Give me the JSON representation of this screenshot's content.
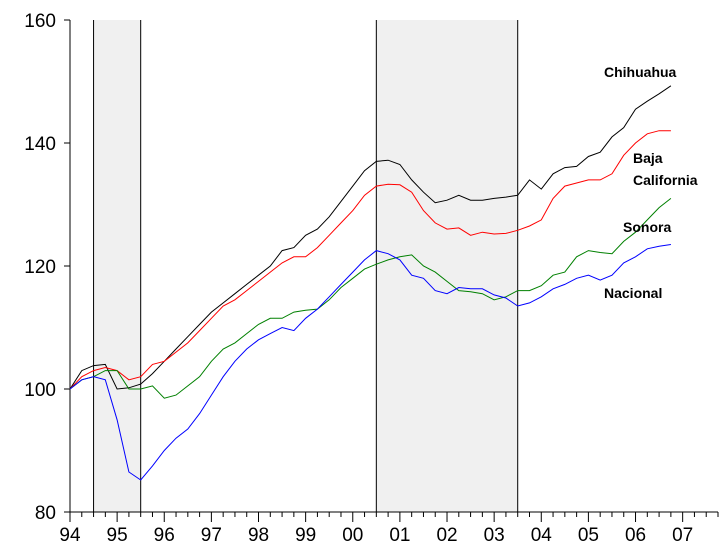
{
  "chart_data": {
    "type": "line",
    "x": [
      1994,
      1994.25,
      1994.5,
      1994.75,
      1995,
      1995.25,
      1995.5,
      1995.75,
      1996,
      1996.25,
      1996.5,
      1996.75,
      1997,
      1997.25,
      1997.5,
      1997.75,
      1998,
      1998.25,
      1998.5,
      1998.75,
      1999,
      1999.25,
      1999.5,
      1999.75,
      2000,
      2000.25,
      2000.5,
      2000.75,
      2001,
      2001.25,
      2001.5,
      2001.75,
      2002,
      2002.25,
      2002.5,
      2002.75,
      2003,
      2003.25,
      2003.5,
      2003.75,
      2004,
      2004.25,
      2004.5,
      2004.75,
      2005,
      2005.25,
      2005.5,
      2005.75,
      2006,
      2006.25,
      2006.5,
      2006.75
    ],
    "series": [
      {
        "name": "Chihuahua",
        "color": "#000000",
        "values": [
          100,
          103,
          103.8,
          104,
          100,
          100.2,
          100.8,
          102.5,
          104.5,
          106.5,
          108.5,
          110.5,
          112.5,
          114,
          115.5,
          117,
          118.5,
          120,
          122.5,
          123,
          125,
          126,
          128,
          130.5,
          133,
          135.5,
          137,
          137.2,
          136.5,
          134,
          132,
          130.3,
          130.7,
          131.5,
          130.7,
          130.7,
          131,
          131.2,
          131.5,
          134,
          132.5,
          135,
          136,
          136.2,
          137.8,
          138.5,
          141,
          142.5,
          145.5,
          146.8,
          148,
          149.3
        ]
      },
      {
        "name": "Baja California",
        "color": "#ff0000",
        "values": [
          100,
          102,
          103,
          103.5,
          103,
          101.5,
          102,
          104,
          104.5,
          106,
          107.5,
          109.5,
          111.5,
          113.5,
          114.5,
          116,
          117.5,
          119,
          120.5,
          121.5,
          121.5,
          123,
          125,
          127,
          129,
          131.5,
          133,
          133.3,
          133.2,
          132,
          129,
          127,
          126,
          126.2,
          125,
          125.5,
          125.2,
          125.3,
          125.8,
          126.5,
          127.5,
          131,
          133,
          133.5,
          134,
          134,
          135,
          138,
          140,
          141.5,
          142,
          142
        ]
      },
      {
        "name": "Sonora",
        "color": "#008000",
        "values": [
          100,
          101.5,
          102,
          103,
          103,
          100,
          100,
          100.5,
          98.5,
          99,
          100.5,
          102,
          104.5,
          106.5,
          107.5,
          109,
          110.5,
          111.5,
          111.5,
          112.5,
          112.8,
          113,
          114.5,
          116.5,
          118,
          119.5,
          120.3,
          121,
          121.5,
          121.8,
          120,
          119,
          117.5,
          116,
          115.8,
          115.5,
          114.5,
          115,
          116,
          116,
          116.8,
          118.5,
          119,
          121.5,
          122.5,
          122.2,
          122,
          124,
          125.5,
          127.5,
          129.5,
          131
        ]
      },
      {
        "name": "Nacional",
        "color": "#0000ff",
        "values": [
          100,
          101.5,
          102,
          101.5,
          95,
          86.5,
          85.2,
          87.5,
          90,
          92,
          93.5,
          96,
          99,
          102,
          104.5,
          106.5,
          108,
          109,
          110,
          109.5,
          111.5,
          113,
          115,
          117,
          119,
          121,
          122.5,
          122,
          121,
          118.5,
          118,
          116,
          115.5,
          116.5,
          116.3,
          116.3,
          115.3,
          114.8,
          113.5,
          114,
          115,
          116.3,
          117,
          118,
          118.5,
          117.7,
          118.5,
          120.5,
          121.5,
          122.8,
          123.2,
          123.5
        ]
      }
    ],
    "shaded": [
      [
        1994.5,
        1995.5
      ],
      [
        2000.5,
        2003.5
      ]
    ],
    "xlim": [
      1994,
      2007.75
    ],
    "xticks": [
      {
        "value": 1994,
        "label": "94"
      },
      {
        "value": 1995,
        "label": "95"
      },
      {
        "value": 1996,
        "label": "96"
      },
      {
        "value": 1997,
        "label": "97"
      },
      {
        "value": 1998,
        "label": "98"
      },
      {
        "value": 1999,
        "label": "99"
      },
      {
        "value": 2000,
        "label": "00"
      },
      {
        "value": 2001,
        "label": "01"
      },
      {
        "value": 2002,
        "label": "02"
      },
      {
        "value": 2003,
        "label": "03"
      },
      {
        "value": 2004,
        "label": "04"
      },
      {
        "value": 2005,
        "label": "05"
      },
      {
        "value": 2006,
        "label": "06"
      },
      {
        "value": 2007,
        "label": "07"
      }
    ],
    "ylim": [
      80,
      160
    ],
    "yticks": [
      80,
      100,
      120,
      140,
      160
    ]
  }
}
